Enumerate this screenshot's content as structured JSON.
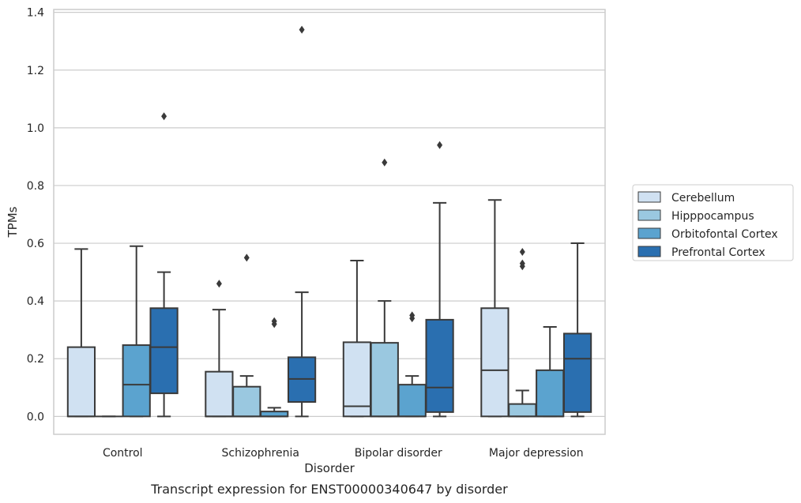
{
  "chart_data": {
    "type": "box",
    "caption": "Transcript expression for ENST00000340647 by disorder",
    "xlabel": "Disorder",
    "ylabel": "TPMs",
    "ylim": [
      -0.062,
      1.41
    ],
    "yticks": [
      0.0,
      0.2,
      0.4,
      0.6,
      0.8,
      1.0,
      1.2,
      1.4
    ],
    "ytick_labels": [
      "0.0",
      "0.2",
      "0.4",
      "0.6",
      "0.8",
      "1.0",
      "1.2",
      "1.4"
    ],
    "grid": "horizontal",
    "legend_placement": "right",
    "categories": [
      "Control",
      "Schizophrenia",
      "Bipolar disorder",
      "Major depression"
    ],
    "series": [
      {
        "name": "Cerebellum",
        "color": "#d0e1f2",
        "boxes": [
          {
            "whisker_low": 0,
            "q1": 0,
            "median": 0,
            "q3": 0.24,
            "whisker_high": 0.58,
            "outliers": []
          },
          {
            "whisker_low": 0,
            "q1": 0,
            "median": 0,
            "q3": 0.155,
            "whisker_high": 0.37,
            "outliers": [
              0.46
            ]
          },
          {
            "whisker_low": 0,
            "q1": 0,
            "median": 0.035,
            "q3": 0.257,
            "whisker_high": 0.54,
            "outliers": []
          },
          {
            "whisker_low": 0,
            "q1": 0,
            "median": 0.16,
            "q3": 0.375,
            "whisker_high": 0.75,
            "outliers": []
          }
        ]
      },
      {
        "name": "Hipppocampus",
        "color": "#9ac8e0",
        "boxes": [
          {
            "whisker_low": 0,
            "q1": 0,
            "median": 0,
            "q3": 0,
            "whisker_high": 0,
            "outliers": []
          },
          {
            "whisker_low": 0,
            "q1": 0,
            "median": 0,
            "q3": 0.103,
            "whisker_high": 0.14,
            "outliers": [
              0.55
            ]
          },
          {
            "whisker_low": 0,
            "q1": 0,
            "median": 0,
            "q3": 0.255,
            "whisker_high": 0.4,
            "outliers": [
              0.88
            ]
          },
          {
            "whisker_low": 0,
            "q1": 0,
            "median": 0,
            "q3": 0.043,
            "whisker_high": 0.09,
            "outliers": [
              0.52,
              0.53,
              0.57
            ]
          }
        ]
      },
      {
        "name": "Orbitofontal Cortex",
        "color": "#5ba3cf",
        "boxes": [
          {
            "whisker_low": 0,
            "q1": 0,
            "median": 0.11,
            "q3": 0.247,
            "whisker_high": 0.59,
            "outliers": []
          },
          {
            "whisker_low": 0,
            "q1": 0,
            "median": 0,
            "q3": 0.017,
            "whisker_high": 0.03,
            "outliers": [
              0.32,
              0.33
            ]
          },
          {
            "whisker_low": 0,
            "q1": 0,
            "median": 0,
            "q3": 0.11,
            "whisker_high": 0.14,
            "outliers": [
              0.34,
              0.35
            ]
          },
          {
            "whisker_low": 0,
            "q1": 0,
            "median": 0,
            "q3": 0.16,
            "whisker_high": 0.31,
            "outliers": []
          }
        ]
      },
      {
        "name": "Prefrontal Cortex",
        "color": "#2a6fb0",
        "boxes": [
          {
            "whisker_low": 0,
            "q1": 0.08,
            "median": 0.24,
            "q3": 0.375,
            "whisker_high": 0.5,
            "outliers": [
              1.04
            ]
          },
          {
            "whisker_low": 0,
            "q1": 0.05,
            "median": 0.13,
            "q3": 0.205,
            "whisker_high": 0.43,
            "outliers": [
              1.34
            ]
          },
          {
            "whisker_low": 0,
            "q1": 0.015,
            "median": 0.1,
            "q3": 0.335,
            "whisker_high": 0.74,
            "outliers": [
              0.94
            ]
          },
          {
            "whisker_low": 0,
            "q1": 0.015,
            "median": 0.2,
            "q3": 0.287,
            "whisker_high": 0.6,
            "outliers": []
          }
        ]
      }
    ]
  }
}
